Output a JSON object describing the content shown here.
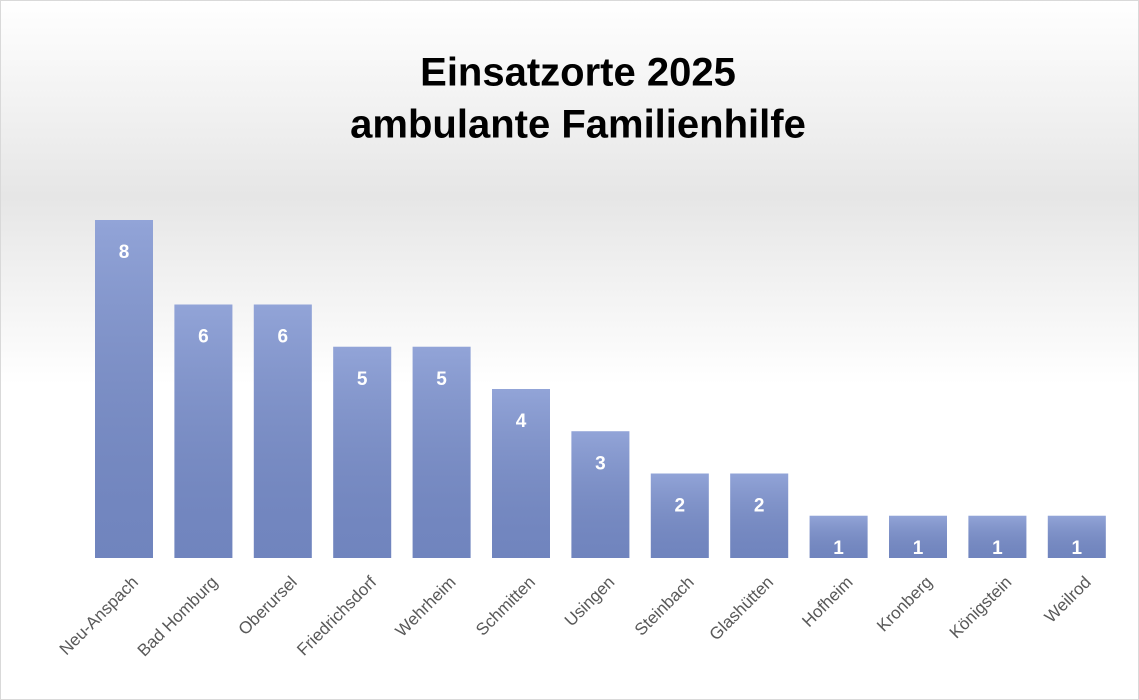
{
  "chart_data": {
    "type": "bar",
    "title": [
      "Einsatzorte 2025",
      "ambulante Familienhilfe"
    ],
    "categories": [
      "Neu-Anspach",
      "Bad Homburg",
      "Oberursel",
      "Friedrichsdorf",
      "Wehrheim",
      "Schmitten",
      "Usingen",
      "Steinbach",
      "Glashütten",
      "Hofheim",
      "Kronberg",
      "Königstein",
      "Weilrod"
    ],
    "values": [
      8,
      6,
      6,
      5,
      5,
      4,
      3,
      2,
      2,
      1,
      1,
      1,
      1
    ],
    "color": "#7a90cf"
  }
}
